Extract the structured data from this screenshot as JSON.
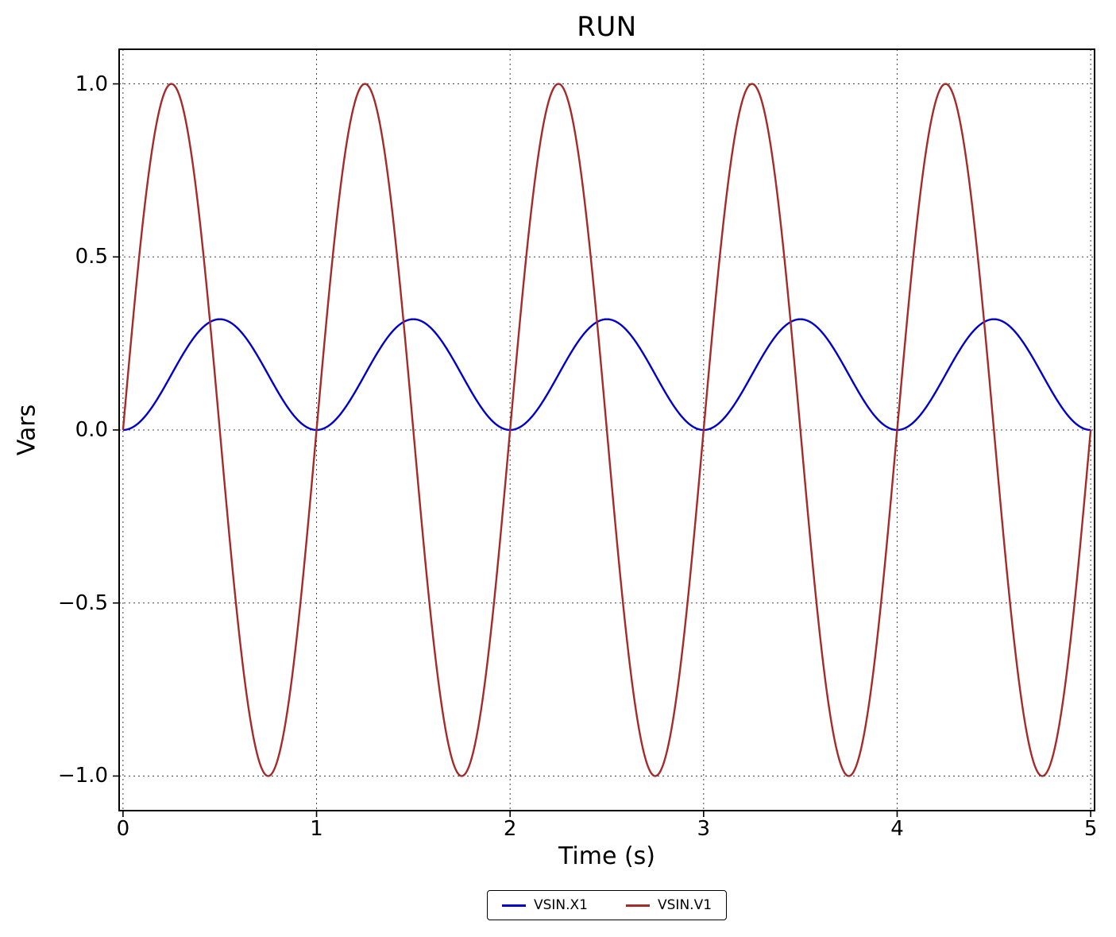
{
  "chart_data": {
    "type": "line",
    "title": "RUN",
    "xlabel": "Time (s)",
    "ylabel": "Vars",
    "xlim": [
      0,
      5
    ],
    "ylim": [
      -1.1,
      1.1
    ],
    "x_ticks": {
      "values": [
        0,
        1,
        2,
        3,
        4,
        5
      ],
      "labels": [
        "0",
        "1",
        "2",
        "3",
        "4",
        "5"
      ]
    },
    "y_ticks": {
      "values": [
        1.0,
        0.5,
        0.0,
        -0.5,
        -1.0
      ],
      "labels": [
        "1.0",
        "0.5",
        "0.0",
        "−0.5",
        "−1.0"
      ]
    },
    "grid": "dotted",
    "legend_position": "below-axes-centered",
    "t_range_s": [
      0,
      5
    ],
    "series": [
      {
        "name": "VSIN.X1",
        "color": "#0000cd",
        "waveform": "sine",
        "offset": 0.16,
        "amplitude": 0.16,
        "frequency_hz": 1,
        "phase_deg": -90,
        "peak_value": 0.32,
        "min_value": 0.0
      },
      {
        "name": "VSIN.V1",
        "color": "#a52a2a",
        "waveform": "sine",
        "offset": 0.0,
        "amplitude": 1.0,
        "frequency_hz": 1,
        "phase_deg": 0,
        "peak_value": 1.0,
        "min_value": -1.0
      }
    ]
  },
  "colors": {
    "background": "#ffffff",
    "axes": "#000000",
    "grid": "#444444",
    "text": "#000000"
  }
}
